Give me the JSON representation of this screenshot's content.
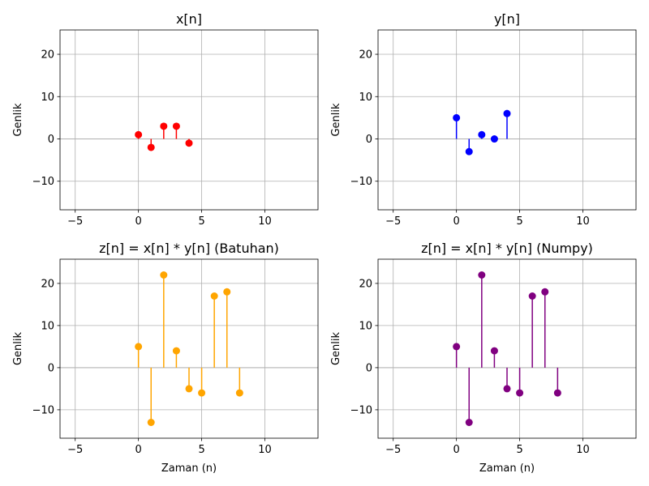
{
  "chart_data": [
    {
      "type": "stem",
      "title": "x[n]",
      "xlabel": "",
      "ylabel": "Genlik",
      "xlim": [
        -6.2,
        14.2
      ],
      "ylim": [
        -16.75,
        25.75
      ],
      "xticks": [
        -5,
        0,
        5,
        10
      ],
      "yticks": [
        -10,
        0,
        10,
        20
      ],
      "grid": true,
      "color": "#ff0000",
      "x": [
        0,
        1,
        2,
        3,
        4
      ],
      "values": [
        1,
        -2,
        3,
        3,
        -1
      ]
    },
    {
      "type": "stem",
      "title": "y[n]",
      "xlabel": "",
      "ylabel": "Genlik",
      "xlim": [
        -6.2,
        14.2
      ],
      "ylim": [
        -16.75,
        25.75
      ],
      "xticks": [
        -5,
        0,
        5,
        10
      ],
      "yticks": [
        -10,
        0,
        10,
        20
      ],
      "grid": true,
      "color": "#0000ff",
      "x": [
        0,
        1,
        2,
        3,
        4
      ],
      "values": [
        5,
        -3,
        1,
        0,
        6
      ]
    },
    {
      "type": "stem",
      "title": "z[n] = x[n] * y[n] (Batuhan)",
      "xlabel": "Zaman (n)",
      "ylabel": "Genlik",
      "xlim": [
        -6.2,
        14.2
      ],
      "ylim": [
        -16.75,
        25.75
      ],
      "xticks": [
        -5,
        0,
        5,
        10
      ],
      "yticks": [
        -10,
        0,
        10,
        20
      ],
      "grid": true,
      "color": "#ffa500",
      "x": [
        0,
        1,
        2,
        3,
        4,
        5,
        6,
        7,
        8
      ],
      "values": [
        5,
        -13,
        22,
        4,
        -5,
        -6,
        17,
        18,
        -6
      ]
    },
    {
      "type": "stem",
      "title": "z[n] = x[n] * y[n] (Numpy)",
      "xlabel": "Zaman (n)",
      "ylabel": "Genlik",
      "xlim": [
        -6.2,
        14.2
      ],
      "ylim": [
        -16.75,
        25.75
      ],
      "xticks": [
        -5,
        0,
        5,
        10
      ],
      "yticks": [
        -10,
        0,
        10,
        20
      ],
      "grid": true,
      "color": "#800080",
      "x": [
        0,
        1,
        2,
        3,
        4,
        5,
        6,
        7,
        8
      ],
      "values": [
        5,
        -13,
        22,
        4,
        -5,
        -6,
        17,
        18,
        -6
      ]
    }
  ]
}
